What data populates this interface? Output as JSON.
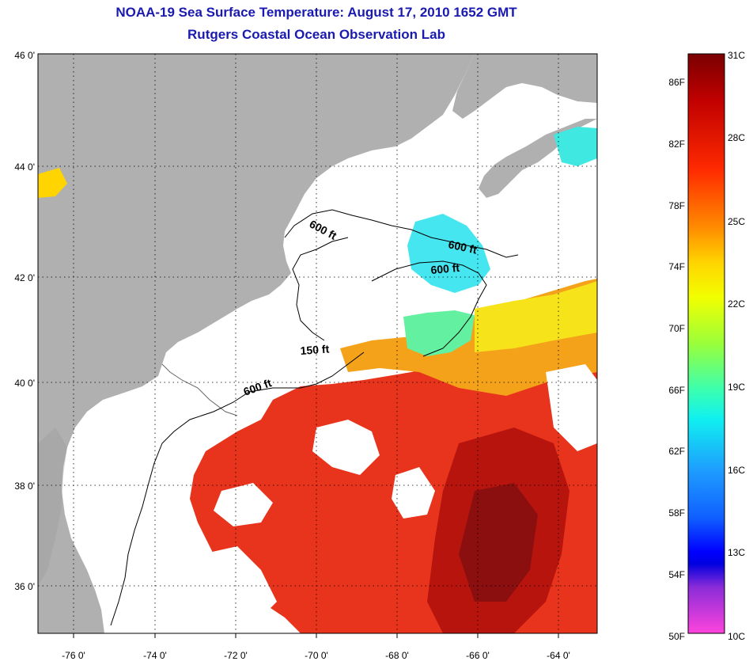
{
  "title": "NOAA-19 Sea Surface Temperature:  August 17, 2010 1652 GMT",
  "subtitle": "Rutgers Coastal Ocean Observation Lab",
  "lat_labels": [
    "46 0'",
    "44 0'",
    "42 0'",
    "40 0'",
    "38 0'",
    "36 0'"
  ],
  "lon_labels": [
    "-76 0'",
    "-74 0'",
    "-72 0'",
    "-70 0'",
    "-68 0'",
    "-66 0'",
    "-64 0'"
  ],
  "contour_labels": [
    "600 ft",
    "600 ft",
    "600 ft",
    "150 ft",
    "600 ft"
  ],
  "colorbar": {
    "fahrenheit": [
      "86F",
      "82F",
      "78F",
      "74F",
      "70F",
      "66F",
      "62F",
      "58F",
      "54F",
      "50F"
    ],
    "celsius": [
      "31C",
      "28C",
      "25C",
      "22C",
      "19C",
      "16C",
      "13C",
      "10C"
    ]
  },
  "colors": {
    "land": "#b0b0b0",
    "title": "#1a1ab0",
    "warm": "#e8341c",
    "hot": "#b8140e"
  }
}
